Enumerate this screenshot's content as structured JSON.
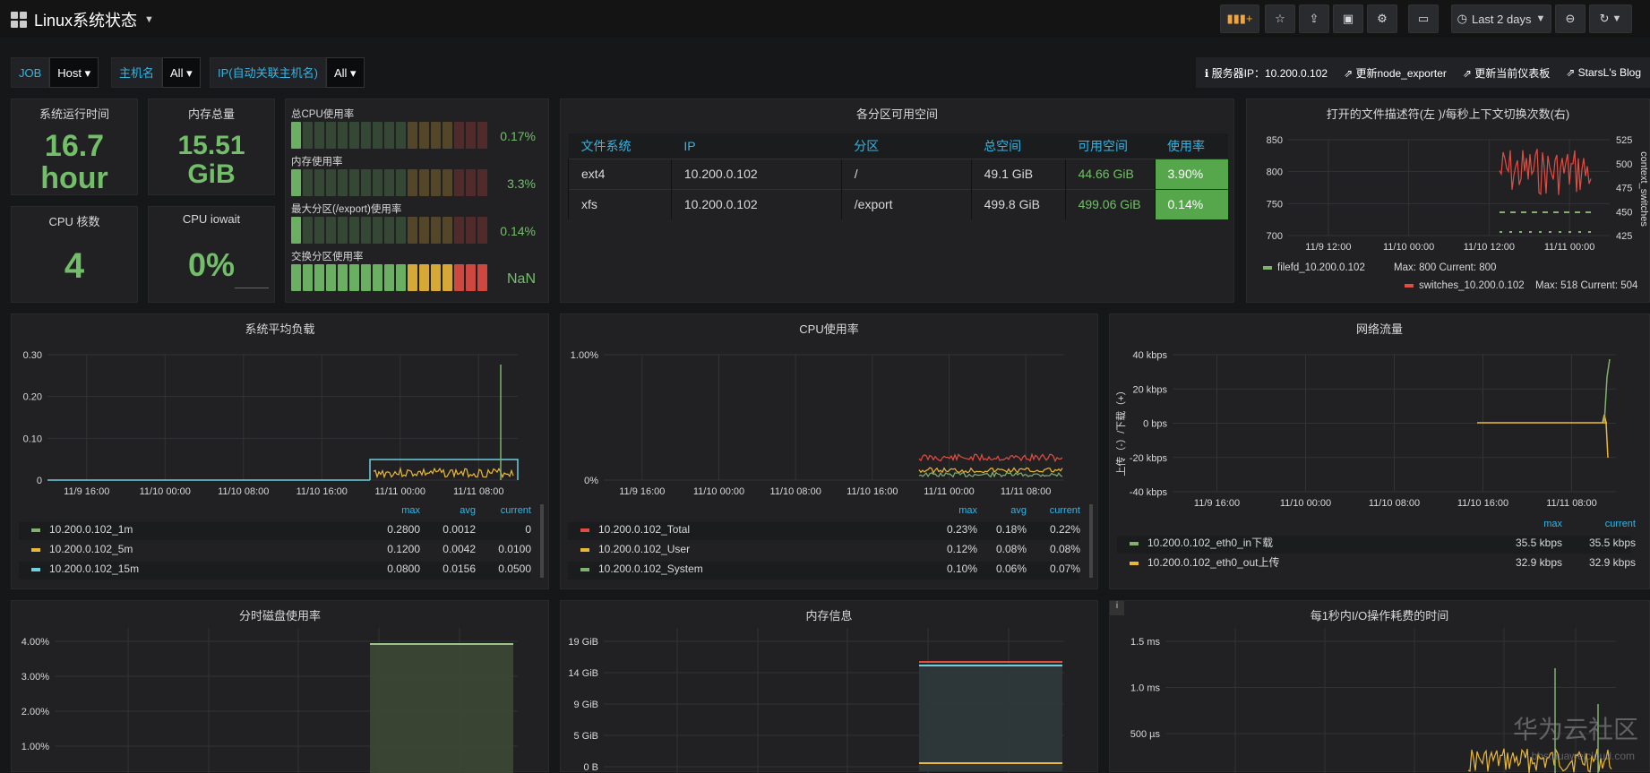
{
  "header": {
    "title": "Linux系统状态",
    "time_range": "Last 2 days"
  },
  "variables": [
    {
      "label": "JOB",
      "value": "Host"
    },
    {
      "label": "主机名",
      "value": "All"
    },
    {
      "label": "IP(自动关联主机名)",
      "value": "All"
    }
  ],
  "links": {
    "server_ip": "服务器IP：10.200.0.102",
    "update_exporter": "更新node_exporter",
    "update_dashboard": "更新当前仪表板",
    "blog": "StarsL's Blog"
  },
  "stats": {
    "uptime": {
      "title": "系统运行时间",
      "value": "16.7",
      "unit": "hour"
    },
    "memory": {
      "title": "内存总量",
      "value": "15.51",
      "unit": "GiB"
    },
    "cores": {
      "title": "CPU 核数",
      "value": "4"
    },
    "iowait": {
      "title": "CPU iowait",
      "value": "0%"
    }
  },
  "bargauges": [
    {
      "label": "总CPU使用率",
      "value": "0.17%",
      "level": 0.0017
    },
    {
      "label": "内存使用率",
      "value": "3.3%",
      "level": 0.033
    },
    {
      "label": "最大分区(/export)使用率",
      "value": "0.14%",
      "level": 0.0014
    },
    {
      "label": "交换分区使用率",
      "value": "NaN",
      "level": 1
    }
  ],
  "filesystem": {
    "title": "各分区可用空间",
    "headers": [
      "文件系统",
      "IP",
      "分区",
      "总空间",
      "可用空间",
      "使用率"
    ],
    "rows": [
      [
        "ext4",
        "10.200.0.102",
        "/",
        "49.1 GiB",
        "44.66 GiB",
        "3.90%"
      ],
      [
        "xfs",
        "10.200.0.102",
        "/export",
        "499.8 GiB",
        "499.06 GiB",
        "0.14%"
      ]
    ]
  },
  "fd_panel": {
    "title": "打开的文件描述符(左 )/每秒上下文切换次数(右)",
    "yleft": [
      "850",
      "800",
      "750",
      "700"
    ],
    "yright": [
      "525",
      "500",
      "475",
      "450",
      "425"
    ],
    "yright_label": "context_switches",
    "xticks": [
      "11/9 12:00",
      "11/10 00:00",
      "11/10 12:00",
      "11/11 00:00"
    ],
    "legend": [
      {
        "name": "filefd_10.200.0.102",
        "stats": "Max: 800  Current: 800",
        "color": "#7eb26d"
      },
      {
        "name": "switches_10.200.0.102",
        "stats": "Max: 518  Current: 504",
        "color": "#e24d42"
      }
    ]
  },
  "load_panel": {
    "title": "系统平均负载",
    "yticks": [
      "0.30",
      "0.20",
      "0.10",
      "0"
    ],
    "xticks": [
      "11/9 16:00",
      "11/10 00:00",
      "11/10 08:00",
      "11/10 16:00",
      "11/11 00:00",
      "11/11 08:00"
    ],
    "cols": [
      "max",
      "avg",
      "current"
    ],
    "rows": [
      {
        "name": "10.200.0.102_1m",
        "max": "0.2800",
        "avg": "0.0012",
        "current": "0",
        "color": "#7eb26d"
      },
      {
        "name": "10.200.0.102_5m",
        "max": "0.1200",
        "avg": "0.0042",
        "current": "0.0100",
        "color": "#eab839"
      },
      {
        "name": "10.200.0.102_15m",
        "max": "0.0800",
        "avg": "0.0156",
        "current": "0.0500",
        "color": "#6ed0e0"
      }
    ]
  },
  "cpu_panel": {
    "title": "CPU使用率",
    "yticks": [
      "1.00%",
      "0%"
    ],
    "xticks": [
      "11/9 16:00",
      "11/10 00:00",
      "11/10 08:00",
      "11/10 16:00",
      "11/11 00:00",
      "11/11 08:00"
    ],
    "cols": [
      "max",
      "avg",
      "current"
    ],
    "rows": [
      {
        "name": "10.200.0.102_Total",
        "max": "0.23%",
        "avg": "0.18%",
        "current": "0.22%",
        "color": "#e24d42"
      },
      {
        "name": "10.200.0.102_User",
        "max": "0.12%",
        "avg": "0.08%",
        "current": "0.08%",
        "color": "#eab839"
      },
      {
        "name": "10.200.0.102_System",
        "max": "0.10%",
        "avg": "0.06%",
        "current": "0.07%",
        "color": "#7eb26d"
      }
    ]
  },
  "net_panel": {
    "title": "网络流量",
    "yticks": [
      "40 kbps",
      "20 kbps",
      "0 bps",
      "-20 kbps",
      "-40 kbps"
    ],
    "ylabel": "上传（-）/下载（+）",
    "xticks": [
      "11/9 16:00",
      "11/10 00:00",
      "11/10 08:00",
      "11/10 16:00",
      "11/11 08:00"
    ],
    "cols": [
      "max",
      "current"
    ],
    "rows": [
      {
        "name": "10.200.0.102_eth0_in下载",
        "max": "35.5 kbps",
        "current": "35.5 kbps",
        "color": "#7eb26d"
      },
      {
        "name": "10.200.0.102_eth0_out上传",
        "max": "32.9 kbps",
        "current": "32.9 kbps",
        "color": "#eab839"
      }
    ]
  },
  "disk_panel": {
    "title": "分时磁盘使用率",
    "yticks": [
      "4.00%",
      "3.00%",
      "2.00%",
      "1.00%"
    ]
  },
  "mem_panel": {
    "title": "内存信息",
    "yticks": [
      "19 GiB",
      "14 GiB",
      "9 GiB",
      "5 GiB",
      "0 B"
    ]
  },
  "io_panel": {
    "title": "每1秒内I/O操作耗费的时间",
    "yticks": [
      "1.5 ms",
      "1.0 ms",
      "500 µs"
    ]
  },
  "watermark": {
    "main": "华为云社区",
    "sub": "bbs.huaweicloud.com"
  }
}
